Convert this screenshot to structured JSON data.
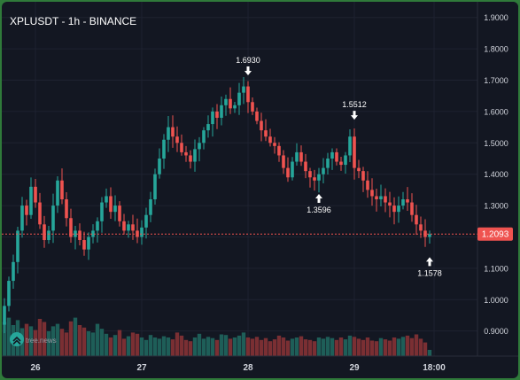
{
  "chart_data": {
    "type": "candlestick",
    "title": "XPLUSDT - 1h - BINANCE",
    "xlabel": "",
    "ylabel": "",
    "ylim": [
      0.82,
      1.95
    ],
    "y_ticks": [
      "1.9000",
      "1.8000",
      "1.7000",
      "1.6000",
      "1.5000",
      "1.4000",
      "1.3000",
      "1.2000",
      "1.1000",
      "1.0000",
      "0.9000"
    ],
    "x_ticks": [
      {
        "label": "26",
        "t": 7
      },
      {
        "label": "27",
        "t": 31
      },
      {
        "label": "28",
        "t": 55
      },
      {
        "label": "29",
        "t": 79
      },
      {
        "label": "18:00",
        "t": 97
      }
    ],
    "last_price": "1.2093",
    "annotations": [
      {
        "label": "1.6930",
        "t": 55,
        "value": 1.693,
        "pos": "above"
      },
      {
        "label": "1.5512",
        "t": 79,
        "value": 1.5512,
        "pos": "above"
      },
      {
        "label": "1.3596",
        "t": 71,
        "value": 1.3596,
        "pos": "below"
      },
      {
        "label": "1.1578",
        "t": 96,
        "value": 1.1578,
        "pos": "below"
      }
    ],
    "closes": [
      0.98,
      1.06,
      1.12,
      1.22,
      1.3,
      1.27,
      1.36,
      1.31,
      1.24,
      1.19,
      1.22,
      1.3,
      1.38,
      1.32,
      1.26,
      1.2,
      1.22,
      1.19,
      1.16,
      1.2,
      1.22,
      1.25,
      1.31,
      1.33,
      1.28,
      1.3,
      1.25,
      1.22,
      1.24,
      1.22,
      1.2,
      1.23,
      1.27,
      1.32,
      1.4,
      1.45,
      1.51,
      1.55,
      1.52,
      1.5,
      1.47,
      1.46,
      1.44,
      1.48,
      1.5,
      1.54,
      1.56,
      1.6,
      1.58,
      1.62,
      1.64,
      1.61,
      1.62,
      1.66,
      1.68,
      1.63,
      1.6,
      1.57,
      1.54,
      1.52,
      1.5,
      1.49,
      1.46,
      1.42,
      1.39,
      1.44,
      1.47,
      1.44,
      1.41,
      1.39,
      1.38,
      1.4,
      1.42,
      1.45,
      1.47,
      1.44,
      1.43,
      1.46,
      1.52,
      1.42,
      1.41,
      1.38,
      1.35,
      1.33,
      1.32,
      1.33,
      1.31,
      1.3,
      1.28,
      1.3,
      1.32,
      1.31,
      1.27,
      1.24,
      1.22,
      1.2,
      1.209
    ],
    "volumes": [
      0.55,
      0.62,
      0.5,
      0.58,
      0.45,
      0.52,
      0.48,
      0.42,
      0.6,
      0.55,
      0.4,
      0.48,
      0.52,
      0.44,
      0.38,
      0.56,
      0.62,
      0.5,
      0.46,
      0.4,
      0.38,
      0.52,
      0.44,
      0.36,
      0.3,
      0.34,
      0.42,
      0.28,
      0.32,
      0.38,
      0.36,
      0.3,
      0.26,
      0.34,
      0.3,
      0.28,
      0.32,
      0.3,
      0.27,
      0.38,
      0.33,
      0.26,
      0.24,
      0.3,
      0.36,
      0.28,
      0.31,
      0.29,
      0.26,
      0.35,
      0.34,
      0.28,
      0.3,
      0.33,
      0.38,
      0.3,
      0.28,
      0.31,
      0.26,
      0.29,
      0.24,
      0.27,
      0.33,
      0.3,
      0.25,
      0.28,
      0.3,
      0.32,
      0.27,
      0.26,
      0.24,
      0.3,
      0.28,
      0.31,
      0.29,
      0.26,
      0.3,
      0.27,
      0.33,
      0.31,
      0.28,
      0.26,
      0.3,
      0.25,
      0.24,
      0.29,
      0.27,
      0.25,
      0.3,
      0.28,
      0.31,
      0.33,
      0.29,
      0.35,
      0.28,
      0.22,
      0.1
    ],
    "colors": {
      "up": "#26a69a",
      "down": "#ef5350",
      "grid": "#1e2230",
      "axis_text": "#d1d4dc",
      "last_price_bg": "#ef5350"
    }
  },
  "watermark": {
    "text": "tree.news",
    "icon": "chevrons-up-icon"
  }
}
